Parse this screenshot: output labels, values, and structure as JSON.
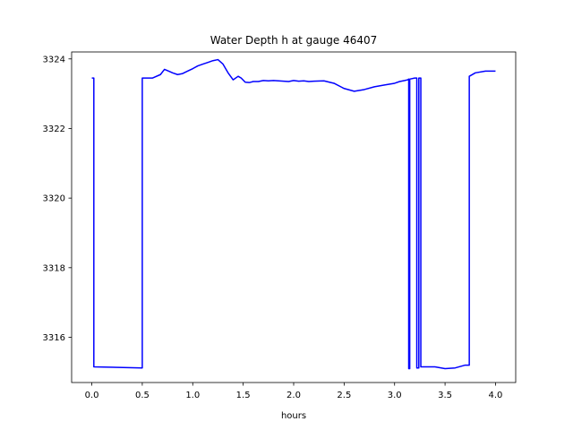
{
  "chart_data": {
    "type": "line",
    "title": "Water Depth h at gauge 46407",
    "xlabel": "hours",
    "ylabel": "",
    "xlim": [
      -0.2,
      4.2
    ],
    "ylim": [
      3314.7,
      3324.2
    ],
    "xticks": [
      0.0,
      0.5,
      1.0,
      1.5,
      2.0,
      2.5,
      3.0,
      3.5,
      4.0
    ],
    "xtick_labels": [
      "0.0",
      "0.5",
      "1.0",
      "1.5",
      "2.0",
      "2.5",
      "3.0",
      "3.5",
      "4.0"
    ],
    "yticks": [
      3316,
      3318,
      3320,
      3322,
      3324
    ],
    "ytick_labels": [
      "3316",
      "3318",
      "3320",
      "3322",
      "3324"
    ],
    "grid": false,
    "series": [
      {
        "color": "#0000ff",
        "x": [
          0.0,
          0.02,
          0.02,
          0.5,
          0.5,
          0.6,
          0.68,
          0.72,
          0.76,
          0.8,
          0.85,
          0.9,
          0.95,
          1.0,
          1.05,
          1.1,
          1.15,
          1.2,
          1.25,
          1.3,
          1.35,
          1.4,
          1.45,
          1.48,
          1.52,
          1.56,
          1.6,
          1.65,
          1.7,
          1.75,
          1.8,
          1.85,
          1.9,
          1.95,
          2.0,
          2.05,
          2.1,
          2.15,
          2.2,
          2.3,
          2.4,
          2.5,
          2.6,
          2.7,
          2.8,
          2.9,
          3.0,
          3.05,
          3.1,
          3.13,
          3.14,
          3.14,
          3.15,
          3.15,
          3.2,
          3.22,
          3.22,
          3.24,
          3.24,
          3.26,
          3.26,
          3.3,
          3.4,
          3.5,
          3.6,
          3.7,
          3.74,
          3.74,
          3.8,
          3.9,
          4.0
        ],
        "y": [
          3323.45,
          3323.45,
          3315.15,
          3315.12,
          3323.45,
          3323.45,
          3323.55,
          3323.7,
          3323.65,
          3323.6,
          3323.55,
          3323.58,
          3323.65,
          3323.72,
          3323.8,
          3323.85,
          3323.9,
          3323.95,
          3323.98,
          3323.85,
          3323.6,
          3323.4,
          3323.5,
          3323.45,
          3323.33,
          3323.32,
          3323.35,
          3323.35,
          3323.38,
          3323.37,
          3323.38,
          3323.37,
          3323.36,
          3323.35,
          3323.38,
          3323.36,
          3323.37,
          3323.35,
          3323.36,
          3323.37,
          3323.3,
          3323.15,
          3323.07,
          3323.12,
          3323.2,
          3323.25,
          3323.3,
          3323.35,
          3323.38,
          3323.4,
          3323.42,
          3315.1,
          3315.1,
          3323.42,
          3323.45,
          3323.45,
          3315.12,
          3315.12,
          3323.45,
          3323.45,
          3315.15,
          3315.15,
          3315.15,
          3315.1,
          3315.12,
          3315.2,
          3315.2,
          3323.5,
          3323.6,
          3323.65,
          3323.65
        ]
      }
    ]
  }
}
